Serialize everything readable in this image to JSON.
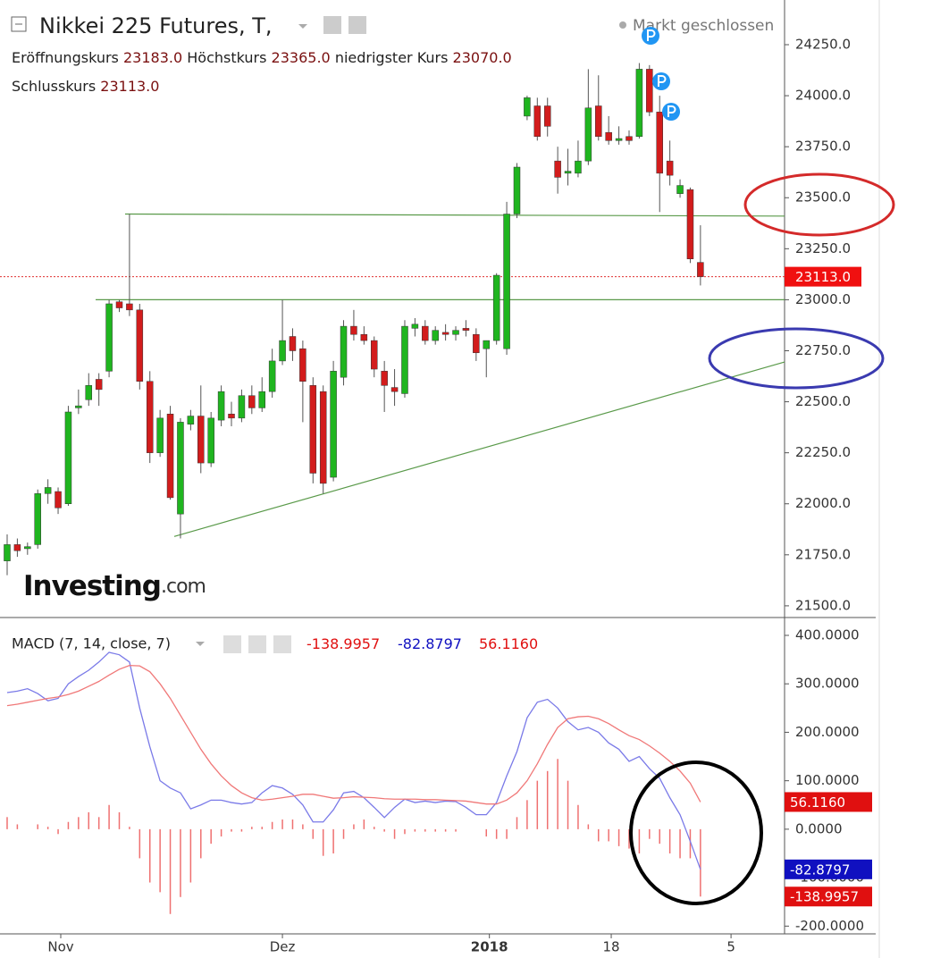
{
  "chart_data": [
    {
      "type": "candlestick",
      "title": "Nikkei 225 Futures, T,",
      "status": "Markt geschlossen",
      "header": [
        {
          "name": "Eröffnungskurs",
          "label": "23183.0"
        },
        {
          "name": "Höchstkurs",
          "label": "23365.0"
        },
        {
          "name": "niedrigster Kurs",
          "label": "23070.0"
        },
        {
          "name": "Schlusskurs",
          "label": "23113.0"
        }
      ],
      "watermark": {
        "brand": "Investing",
        "suffix": ".com"
      },
      "open": [
        21720,
        21800,
        21780,
        21800,
        22050,
        22060,
        22000,
        22470,
        22510,
        22610,
        22650,
        22990,
        22980,
        22950,
        22600,
        22250,
        22440,
        21950,
        22390,
        22430,
        22200,
        22410,
        22440,
        22420,
        22530,
        22470,
        22550,
        22700,
        22820,
        22760,
        22580,
        22550,
        22130,
        22620,
        22870,
        22830,
        22800,
        22650,
        22570,
        22540,
        22860,
        22870,
        22800,
        22840,
        22830,
        22860,
        22830,
        22760,
        22800,
        22760,
        23420,
        23900,
        23950,
        23950,
        23680,
        23620,
        23620,
        23680,
        23950,
        23820,
        23780,
        23800,
        23800,
        24130,
        23920,
        23680,
        23520,
        23540,
        23183
      ],
      "high": [
        21850,
        21830,
        21810,
        22070,
        22120,
        22080,
        22480,
        22560,
        22640,
        22640,
        23000,
        23000,
        23420,
        22980,
        22650,
        22460,
        22480,
        22420,
        22460,
        22580,
        22450,
        22580,
        22500,
        22560,
        22580,
        22620,
        22760,
        23000,
        22860,
        22800,
        22620,
        22580,
        22700,
        22900,
        22950,
        22870,
        22820,
        22700,
        22660,
        22900,
        22910,
        22900,
        22870,
        22880,
        22870,
        22900,
        22860,
        22800,
        23130,
        23480,
        23670,
        24000,
        23990,
        23990,
        23750,
        23740,
        23780,
        24130,
        24100,
        23900,
        23850,
        23830,
        24160,
        24150,
        24000,
        23780,
        23590,
        23550,
        23365
      ],
      "low": [
        21650,
        21740,
        21750,
        21780,
        22000,
        21950,
        21990,
        22440,
        22480,
        22480,
        22620,
        22940,
        22920,
        22560,
        22200,
        22230,
        22020,
        21830,
        22360,
        22150,
        22180,
        22380,
        22380,
        22400,
        22440,
        22450,
        22520,
        22680,
        22700,
        22400,
        22100,
        22050,
        22110,
        22580,
        22800,
        22780,
        22620,
        22450,
        22480,
        22520,
        22820,
        22780,
        22780,
        22800,
        22800,
        22820,
        22700,
        22620,
        22780,
        22730,
        23400,
        23880,
        23780,
        23800,
        23520,
        23560,
        23600,
        23660,
        23780,
        23760,
        23760,
        23760,
        23790,
        23900,
        23430,
        23560,
        23500,
        23180,
        23070
      ],
      "close": [
        21800,
        21770,
        21790,
        22050,
        22080,
        21980,
        22450,
        22480,
        22580,
        22560,
        22980,
        22960,
        22950,
        22600,
        22250,
        22420,
        22030,
        22400,
        22430,
        22200,
        22420,
        22550,
        22420,
        22530,
        22470,
        22550,
        22700,
        22800,
        22750,
        22600,
        22150,
        22100,
        22650,
        22870,
        22830,
        22800,
        22660,
        22580,
        22550,
        22870,
        22880,
        22800,
        22850,
        22830,
        22850,
        22850,
        22740,
        22800,
        23120,
        23420,
        23650,
        23990,
        23800,
        23850,
        23600,
        23630,
        23680,
        23940,
        23800,
        23780,
        23790,
        23780,
        24130,
        23920,
        23620,
        23610,
        23560,
        23200,
        23113
      ],
      "up_color": "#1fb51f",
      "down_color": "#d21c1c",
      "last_price": {
        "value": 23113,
        "label": "23113.0"
      },
      "trendlines": [
        [
          [
            11.57,
            23420
          ],
          [
            76.25,
            23410
          ]
        ],
        [
          [
            8.68,
            23000
          ],
          [
            76.25,
            23000
          ]
        ],
        [
          [
            16.39,
            21840
          ],
          [
            76.25,
            22695
          ]
        ]
      ],
      "xlim": [
        -0.7,
        76.25
      ],
      "xticks": [
        {
          "value": 5.26,
          "label": "Nov"
        },
        {
          "value": 27.0,
          "label": "Dez"
        },
        {
          "value": 47.3,
          "label": "2018"
        },
        {
          "value": 59.25,
          "label": "18"
        },
        {
          "value": 71.0,
          "label": "5"
        }
      ],
      "ylim": [
        21447,
        24469
      ],
      "yticks": [
        {
          "value": 21500,
          "label": "21500.0"
        },
        {
          "value": 21750,
          "label": "21750.0"
        },
        {
          "value": 22000,
          "label": "22000.0"
        },
        {
          "value": 22250,
          "label": "22250.0"
        },
        {
          "value": 22500,
          "label": "22500.0"
        },
        {
          "value": 22750,
          "label": "22750.0"
        },
        {
          "value": 23000,
          "label": "23000.0"
        },
        {
          "value": 23250,
          "label": "23250.0"
        },
        {
          "value": 23500,
          "label": "23500.0"
        },
        {
          "value": 23750,
          "label": "23750.0"
        },
        {
          "value": 24000,
          "label": "24000.0"
        },
        {
          "value": 24250,
          "label": "24250.0"
        }
      ]
    },
    {
      "type": "macd",
      "legend": "MACD (7, 14, close, 7)",
      "series": [
        {
          "name": "histogram",
          "color": "#ef7070",
          "last_label": "-138.9957",
          "values": [
            25,
            10,
            0,
            10,
            5,
            -10,
            15,
            25,
            35,
            25,
            50,
            35,
            5,
            -60,
            -110,
            -130,
            -175,
            -140,
            -110,
            -60,
            -30,
            -15,
            -5,
            -5,
            5,
            5,
            15,
            20,
            20,
            10,
            -20,
            -55,
            -50,
            -20,
            10,
            20,
            5,
            -5,
            -20,
            -10,
            -5,
            -5,
            -5,
            -5,
            -5,
            0,
            0,
            -15,
            -20,
            -20,
            25,
            60,
            100,
            120,
            145,
            100,
            50,
            10,
            -25,
            -25,
            -35,
            -40,
            -50,
            -20,
            -30,
            -50,
            -60,
            -60,
            -138.9957
          ]
        },
        {
          "name": "macd",
          "color": "#7a7ae8",
          "last_label": "-82.8797",
          "values": [
            282,
            285,
            290,
            280,
            265,
            270,
            300,
            315,
            328,
            345,
            365,
            360,
            345,
            250,
            170,
            100,
            85,
            75,
            42,
            50,
            60,
            60,
            55,
            52,
            55,
            75,
            90,
            85,
            72,
            50,
            15,
            15,
            40,
            75,
            78,
            65,
            45,
            24,
            45,
            62,
            55,
            58,
            55,
            58,
            57,
            45,
            30,
            30,
            55,
            110,
            160,
            230,
            262,
            268,
            250,
            222,
            205,
            210,
            200,
            178,
            165,
            140,
            150,
            125,
            105,
            65,
            30,
            -25,
            -82.8797
          ]
        },
        {
          "name": "signal",
          "color": "#f07878",
          "last_label": "56.1160",
          "values": [
            255,
            258,
            262,
            266,
            270,
            273,
            278,
            285,
            295,
            305,
            318,
            330,
            338,
            337,
            325,
            300,
            270,
            235,
            200,
            165,
            135,
            110,
            90,
            75,
            65,
            60,
            62,
            65,
            68,
            72,
            72,
            68,
            64,
            65,
            67,
            66,
            65,
            63,
            62,
            62,
            62,
            61,
            61,
            60,
            59,
            58,
            55,
            52,
            52,
            60,
            75,
            100,
            135,
            175,
            210,
            228,
            232,
            233,
            228,
            218,
            205,
            193,
            185,
            172,
            157,
            140,
            120,
            95,
            56.116
          ]
        }
      ],
      "label_colors": {
        "histogram": "#e01010",
        "macd": "#1010c0",
        "signal": "#e01010"
      },
      "ylim": [
        -216,
        435
      ],
      "yticks": [
        {
          "value": 400,
          "label": "400.0000"
        },
        {
          "value": 300,
          "label": "300.0000"
        },
        {
          "value": 200,
          "label": "200.0000"
        },
        {
          "value": 100,
          "label": "100.0000"
        },
        {
          "value": 0,
          "label": "0.0000"
        },
        {
          "value": -100,
          "label": "-100.0000"
        },
        {
          "value": -200,
          "label": "-200.0000"
        }
      ]
    }
  ]
}
